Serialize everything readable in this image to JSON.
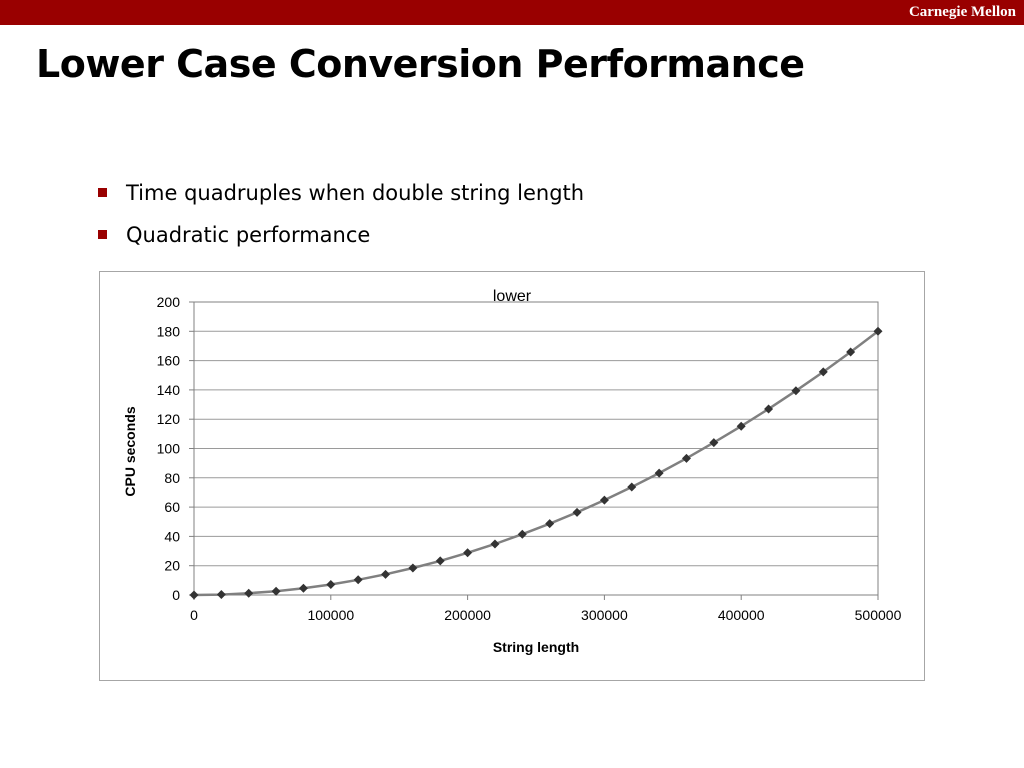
{
  "header": {
    "brand": "Carnegie Mellon",
    "bar_color": "#990000"
  },
  "slide": {
    "title": "Lower Case Conversion Performance",
    "bullets": [
      "Time quadruples when double string length",
      "Quadratic performance"
    ],
    "bullet_color": "#990000"
  },
  "chart_data": {
    "type": "line",
    "title": "lower",
    "xlabel": "String length",
    "ylabel": "CPU seconds",
    "xlim": [
      0,
      500000
    ],
    "ylim": [
      0,
      200
    ],
    "x_ticks": [
      0,
      100000,
      200000,
      300000,
      400000,
      500000
    ],
    "y_ticks": [
      0,
      20,
      40,
      60,
      80,
      100,
      120,
      140,
      160,
      180,
      200
    ],
    "grid": "horizontal",
    "legend": "none",
    "marker": "diamond",
    "line_color": "#808080",
    "marker_color": "#333333",
    "series": [
      {
        "x": [
          0,
          20000,
          40000,
          60000,
          80000,
          100000,
          120000,
          140000,
          160000,
          180000,
          200000,
          220000,
          240000,
          260000,
          280000,
          300000,
          320000,
          340000,
          360000,
          380000,
          400000,
          420000,
          440000,
          460000,
          480000,
          500000
        ],
        "values": [
          0,
          0.3,
          1.2,
          2.6,
          4.6,
          7.2,
          10.4,
          14.1,
          18.4,
          23.3,
          28.8,
          34.8,
          41.5,
          48.7,
          56.4,
          64.8,
          73.7,
          83.2,
          93.3,
          104,
          115.2,
          127,
          139.4,
          152.3,
          165.9,
          180
        ]
      }
    ]
  }
}
